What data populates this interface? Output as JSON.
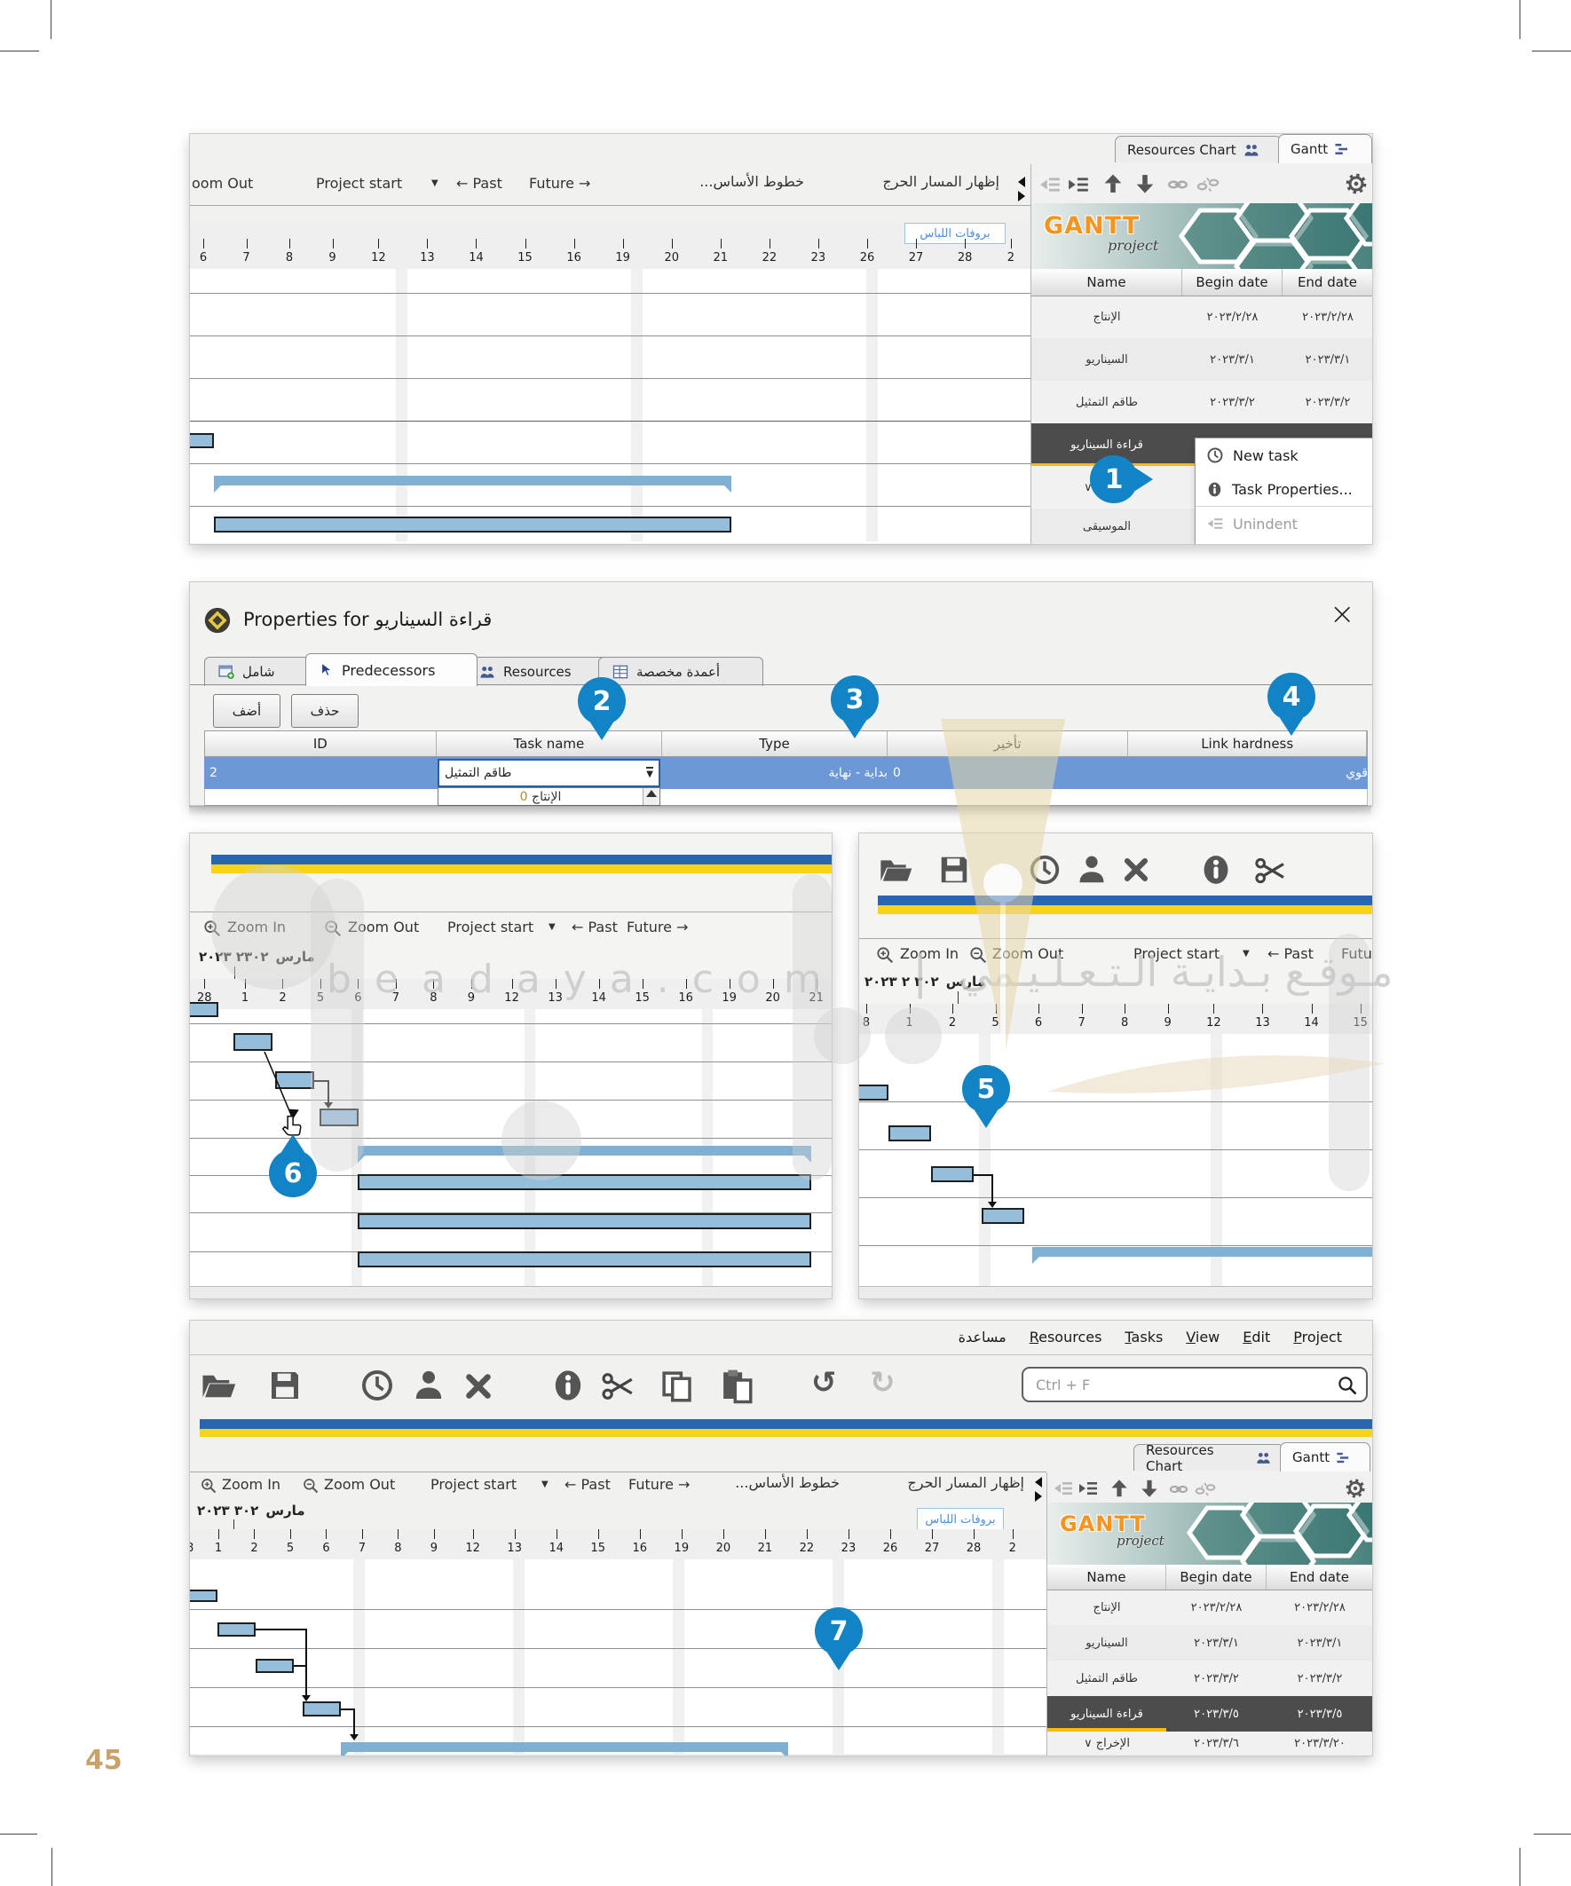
{
  "page": {
    "number": "45"
  },
  "watermark": {
    "latin": "b e a d a y a . c o m",
    "divider": "|",
    "arabic": "مـوقـع بـدايـة الـتـعـلـيـمي"
  },
  "common": {
    "tabs": {
      "resources_chart": "Resources Chart",
      "gantt": "Gantt"
    },
    "table_headers": {
      "name": "Name",
      "begin": "Begin date",
      "end": "End date"
    },
    "logo": {
      "gantt": "GANTT",
      "project": "project"
    },
    "zoom_in": "Zoom In",
    "zoom_out": "Zoom Out",
    "project_start": "Project start",
    "past": "← Past",
    "future": "Future →",
    "future_clipped": "Futu",
    "baselines": "خطوط الأساس...",
    "critical": "إظهار المسار الحرج",
    "dress_label": "بروفات اللباس"
  },
  "panel_top": {
    "toolbar_left": "oom Out",
    "ruler": [
      "6",
      "7",
      "8",
      "9",
      "12",
      "13",
      "14",
      "15",
      "16",
      "19",
      "20",
      "21",
      "22",
      "23",
      "26",
      "27",
      "28",
      "2"
    ],
    "rows": [
      {
        "name": "الإنتاج",
        "begin": "٢٠٢٣/٢/٢٨",
        "end": "٢٠٢٣/٢/٢٨"
      },
      {
        "name": "السيناريو",
        "begin": "٢٠٢٣/٣/١",
        "end": "٢٠٢٣/٣/١"
      },
      {
        "name": "طاقم التمثيل",
        "begin": "٢٠٢٣/٣/٢",
        "end": "٢٠٢٣/٣/٢"
      },
      {
        "name": "قراءة السيناريو",
        "begin": "٢٠٢"
      },
      {
        "name": "الإخراج ∨",
        "begin": ""
      },
      {
        "name": "الموسيقى",
        "begin": "٢٠٢"
      }
    ],
    "menu": {
      "new_task": "New task",
      "task_properties": "Task Properties...",
      "unindent": "Unindent"
    },
    "callout": "1"
  },
  "dialog": {
    "title": "Properties for قراءة السيناريو",
    "close": "×",
    "tabs": {
      "general": "شامل",
      "predecessors": "Predecessors",
      "resources": "Resources",
      "custom": "أعمدة مخصصة"
    },
    "add": "أضف",
    "del": "حذف",
    "headers": {
      "id": "ID",
      "task_name": "Task name",
      "type": "Type",
      "delay": "تأخير",
      "hardness": "Link hardness"
    },
    "row": {
      "id": "2",
      "task_name": "طاقم التمثيل",
      "type": "بداية - نهاية",
      "delay": "0",
      "hardness": "قوي"
    },
    "dropdown": {
      "item_name": "الإنتاج",
      "item_num": "0"
    },
    "callouts": {
      "c2": "2",
      "c3": "3",
      "c4": "4"
    }
  },
  "panel_mid_left": {
    "month": {
      "digits": "٢٣٠٢ ٢٠٢٣",
      "word": "مارس"
    },
    "ruler": [
      "28",
      "1",
      "2",
      "5",
      "6",
      "7",
      "8",
      "9",
      "12",
      "13",
      "14",
      "15",
      "16",
      "19",
      "20",
      "21"
    ],
    "callout": "6"
  },
  "panel_mid_right": {
    "month": {
      "digits": "٣٠٢ ٢ ٢٠٢٣",
      "word": "مارس"
    },
    "ruler": [
      "8",
      "1",
      "2",
      "5",
      "6",
      "7",
      "8",
      "9",
      "12",
      "13",
      "14",
      "15"
    ],
    "callout": "5"
  },
  "panel_bottom": {
    "menu": [
      "مساعدة",
      "Resources",
      "Tasks",
      "View",
      "Edit",
      "Project"
    ],
    "search_placeholder": "Ctrl + F",
    "month": {
      "digits": "٣٠٢ ٢٠٢٣",
      "word": "مارس"
    },
    "ruler_clip": "8",
    "ruler": [
      "1",
      "2",
      "5",
      "6",
      "7",
      "8",
      "9",
      "12",
      "13",
      "14",
      "15",
      "16",
      "19",
      "20",
      "21",
      "22",
      "23",
      "26",
      "27",
      "28",
      "2"
    ],
    "rows": [
      {
        "name": "الإنتاج",
        "begin": "٢٠٢٣/٢/٢٨",
        "end": "٢٠٢٣/٢/٢٨"
      },
      {
        "name": "السيناريو",
        "begin": "٢٠٢٣/٣/١",
        "end": "٢٠٢٣/٣/١"
      },
      {
        "name": "طاقم التمثيل",
        "begin": "٢٠٢٣/٣/٢",
        "end": "٢٠٢٣/٣/٢"
      },
      {
        "name": "قراءة السيناريو",
        "begin": "٢٠٢٣/٣/٥",
        "end": "٢٠٢٣/٣/٥"
      },
      {
        "name": "الإخراج ∨",
        "begin": "٢٠٢٣/٣/٦",
        "end": "٢٠٢٣/٣/٢٠"
      }
    ],
    "callout": "7"
  }
}
